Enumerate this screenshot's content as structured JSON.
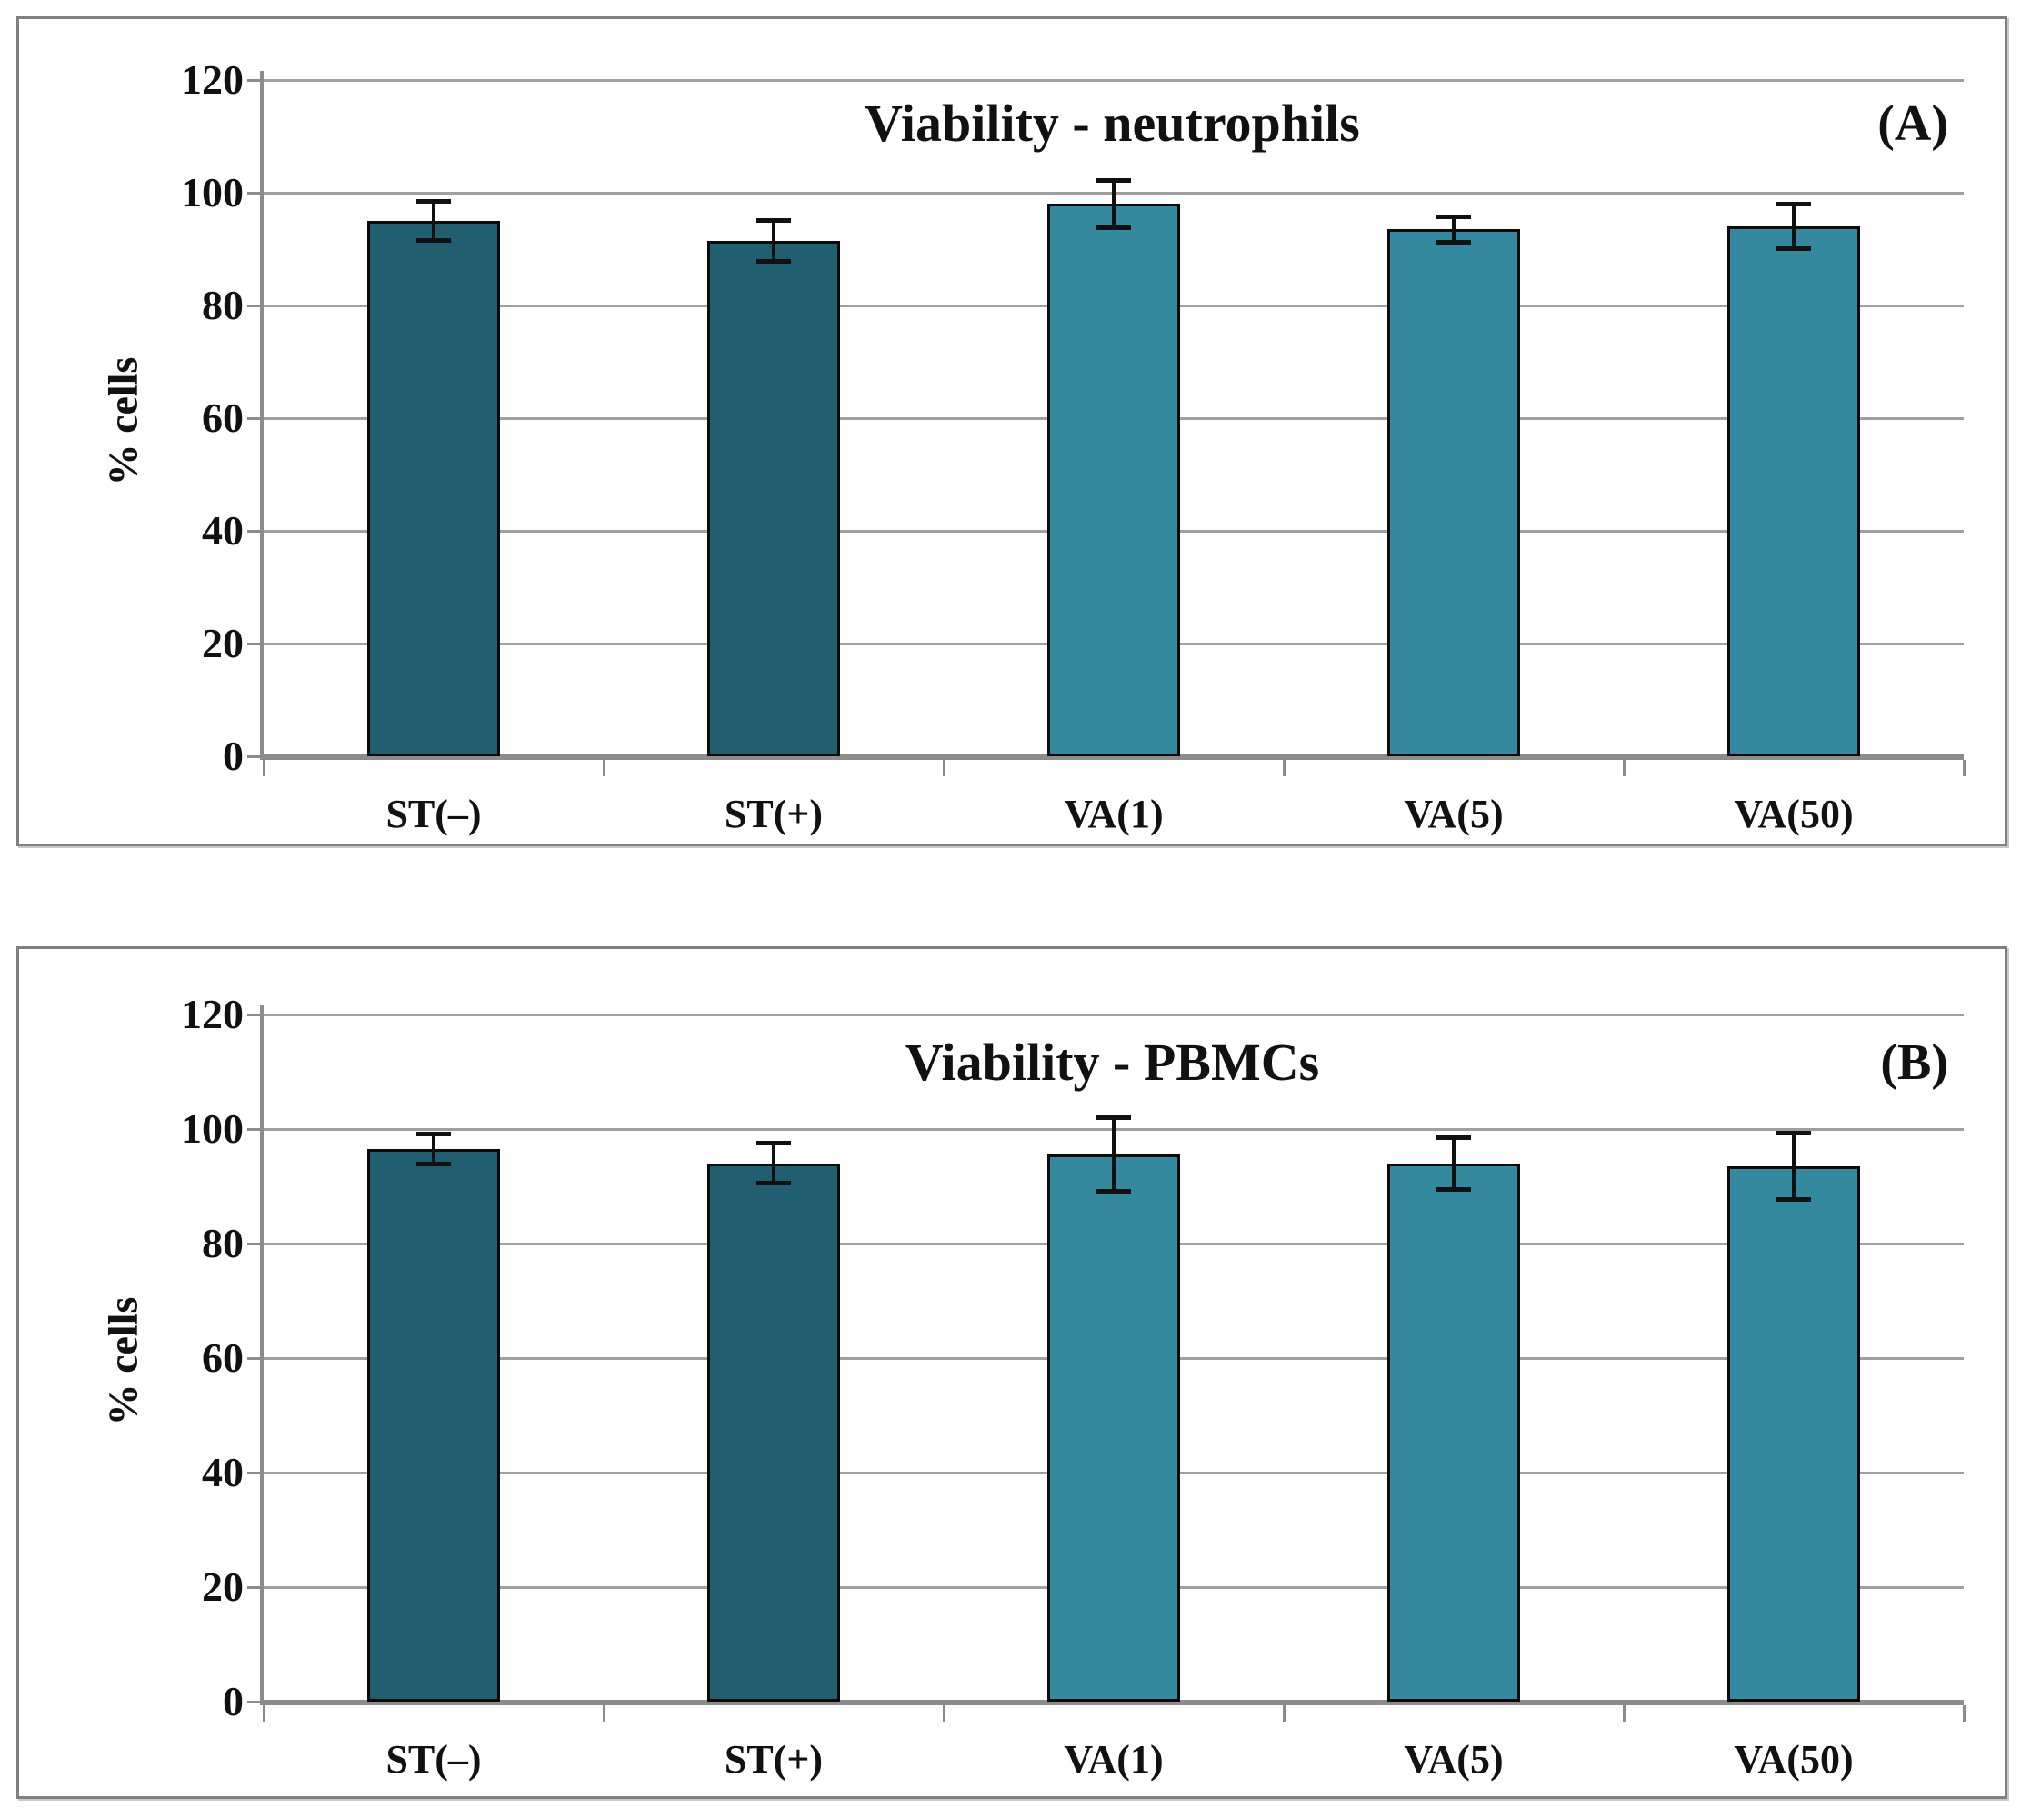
{
  "style": {
    "dark_bar_color": "#215e70",
    "light_bar_color": "#35899e",
    "grid_color": "#a0a0a0",
    "axis_color": "#8c8c8c",
    "frame_color": "#808080",
    "error_bar_color": "#111111",
    "text_color": "#111111"
  },
  "chart_data": [
    {
      "type": "bar",
      "panel_label": "(A)",
      "title": "Viability - neutrophils",
      "ylabel": "% cells",
      "xlabel": "",
      "categories": [
        "ST(–)",
        "ST(+)",
        "VA(1)",
        "VA(5)",
        "VA(50)"
      ],
      "values": [
        95,
        91.5,
        98,
        93.5,
        94
      ],
      "errors": [
        3.5,
        3.7,
        4.3,
        2.3,
        4.0
      ],
      "bar_colors": [
        "#215e70",
        "#215e70",
        "#35899e",
        "#35899e",
        "#35899e"
      ],
      "ylim": [
        0,
        120
      ],
      "yticks": [
        0,
        20,
        40,
        60,
        80,
        100,
        120
      ],
      "grid": true,
      "legend": "none"
    },
    {
      "type": "bar",
      "panel_label": "(B)",
      "title": "Viability - PBMCs",
      "ylabel": "% cells",
      "xlabel": "",
      "categories": [
        "ST(–)",
        "ST(+)",
        "VA(1)",
        "VA(5)",
        "VA(50)"
      ],
      "values": [
        96.5,
        94,
        95.5,
        94,
        93.5
      ],
      "errors": [
        2.7,
        3.6,
        6.5,
        4.6,
        5.9
      ],
      "bar_colors": [
        "#215e70",
        "#215e70",
        "#35899e",
        "#35899e",
        "#35899e"
      ],
      "ylim": [
        0,
        120
      ],
      "yticks": [
        0,
        20,
        40,
        60,
        80,
        100,
        120
      ],
      "grid": true,
      "legend": "none"
    }
  ]
}
